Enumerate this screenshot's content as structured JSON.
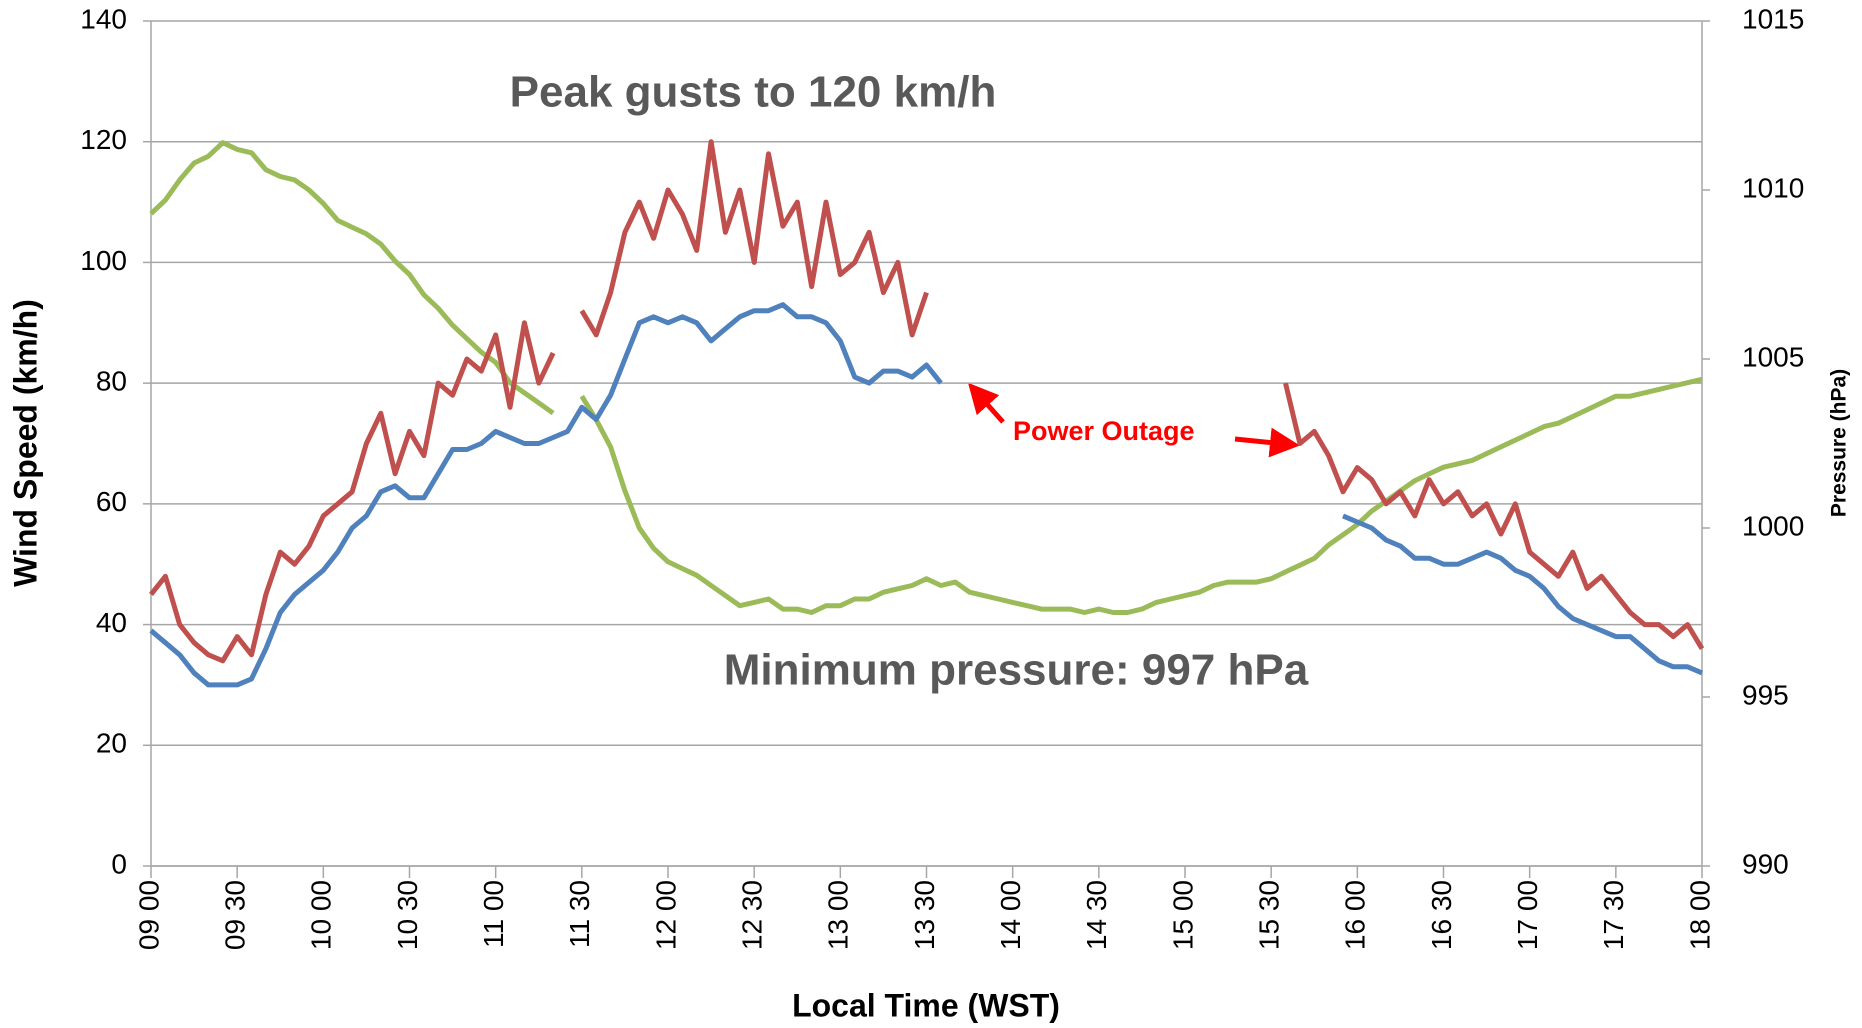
{
  "chart_data": {
    "type": "line",
    "xlabel": "Local Time (WST)",
    "ylabel": "Wind Speed (km/h)",
    "y2label": "Pressure (hPa)",
    "annotations": [
      "Peak gusts to 120 km/h",
      "Minimum pressure: 997 hPa",
      "Power Outage"
    ],
    "x": [
      540,
      545,
      550,
      555,
      560,
      565,
      570,
      575,
      580,
      585,
      590,
      595,
      600,
      605,
      610,
      615,
      620,
      625,
      630,
      635,
      640,
      645,
      650,
      655,
      660,
      665,
      670,
      675,
      680,
      685,
      690,
      695,
      700,
      705,
      710,
      715,
      720,
      725,
      730,
      735,
      740,
      745,
      750,
      755,
      760,
      765,
      770,
      775,
      780,
      785,
      790,
      795,
      800,
      805,
      810,
      815,
      820,
      825,
      830,
      835,
      840,
      845,
      850,
      855,
      860,
      865,
      870,
      875,
      880,
      885,
      890,
      895,
      900,
      905,
      910,
      915,
      920,
      925,
      930,
      935,
      940,
      945,
      950,
      955,
      960,
      965,
      970,
      975,
      980,
      985,
      990,
      995,
      1000,
      1005,
      1010,
      1015,
      1020,
      1025,
      1030,
      1035,
      1040,
      1045,
      1050,
      1055,
      1060,
      1065,
      1070,
      1075,
      1080
    ],
    "xlim": [
      540,
      1080
    ],
    "xticks": [
      {
        "value": 540,
        "label": "09 00"
      },
      {
        "value": 570,
        "label": "09 30"
      },
      {
        "value": 600,
        "label": "10 00"
      },
      {
        "value": 630,
        "label": "10 30"
      },
      {
        "value": 660,
        "label": "11 00"
      },
      {
        "value": 690,
        "label": "11 30"
      },
      {
        "value": 720,
        "label": "12 00"
      },
      {
        "value": 750,
        "label": "12 30"
      },
      {
        "value": 780,
        "label": "13 00"
      },
      {
        "value": 810,
        "label": "13 30"
      },
      {
        "value": 840,
        "label": "14 00"
      },
      {
        "value": 870,
        "label": "14 30"
      },
      {
        "value": 900,
        "label": "15 00"
      },
      {
        "value": 930,
        "label": "15 30"
      },
      {
        "value": 960,
        "label": "16 00"
      },
      {
        "value": 990,
        "label": "16 30"
      },
      {
        "value": 1020,
        "label": "17 00"
      },
      {
        "value": 1050,
        "label": "17 30"
      },
      {
        "value": 1080,
        "label": "18 00"
      }
    ],
    "ylim": [
      0,
      140
    ],
    "yticks": [
      0,
      20,
      40,
      60,
      80,
      100,
      120,
      140
    ],
    "y2lim": [
      990,
      1015
    ],
    "y2ticks": [
      990,
      995,
      1000,
      1005,
      1010,
      1015
    ],
    "grid": true,
    "series": [
      {
        "color": "#4f81bd",
        "values": [
          39,
          37,
          35,
          32,
          30,
          30,
          30,
          31,
          36,
          42,
          45,
          47,
          49,
          52,
          56,
          58,
          62,
          63,
          61,
          61,
          65,
          69,
          69,
          70,
          72,
          71,
          70,
          70,
          71,
          72,
          76,
          74,
          78,
          84,
          90,
          91,
          90,
          91,
          90,
          87,
          89,
          91,
          92,
          92,
          93,
          91,
          91,
          90,
          87,
          81,
          80,
          82,
          82,
          81,
          83,
          80,
          null,
          null,
          null,
          null,
          null,
          null,
          null,
          null,
          null,
          null,
          null,
          null,
          null,
          null,
          null,
          null,
          null,
          null,
          null,
          null,
          null,
          null,
          null,
          null,
          null,
          null,
          null,
          58,
          57,
          56,
          54,
          53,
          51,
          51,
          50,
          50,
          51,
          52,
          51,
          49,
          48,
          46,
          43,
          41,
          40,
          39,
          38,
          38,
          36,
          34,
          33,
          33,
          32
        ]
      },
      {
        "color": "#c0504d",
        "values": [
          45,
          48,
          40,
          37,
          35,
          34,
          38,
          35,
          45,
          52,
          50,
          53,
          58,
          60,
          62,
          70,
          75,
          65,
          72,
          68,
          80,
          78,
          84,
          82,
          88,
          76,
          90,
          80,
          85,
          null,
          92,
          88,
          95,
          105,
          110,
          104,
          112,
          108,
          102,
          120,
          105,
          112,
          100,
          118,
          106,
          110,
          96,
          110,
          98,
          100,
          105,
          95,
          100,
          88,
          95,
          null,
          null,
          null,
          null,
          null,
          null,
          null,
          null,
          null,
          null,
          null,
          null,
          null,
          null,
          null,
          null,
          null,
          null,
          null,
          null,
          null,
          null,
          null,
          null,
          80,
          70,
          72,
          68,
          62,
          66,
          64,
          60,
          62,
          58,
          64,
          60,
          62,
          58,
          60,
          55,
          60,
          52,
          50,
          48,
          52,
          46,
          48,
          45,
          42,
          40,
          40,
          38,
          40,
          36
        ]
      },
      {
        "color": "#9bbb59",
        "axis": "y2",
        "values": [
          1009.3,
          1009.7,
          1010.3,
          1010.8,
          1011.0,
          1011.4,
          1011.2,
          1011.1,
          1010.6,
          1010.4,
          1010.3,
          1010.0,
          1009.6,
          1009.1,
          1008.9,
          1008.7,
          1008.4,
          1007.9,
          1007.5,
          1006.9,
          1006.5,
          1006.0,
          1005.6,
          1005.2,
          1004.9,
          1004.3,
          1004.0,
          1003.7,
          1003.4,
          null,
          1003.9,
          1003.2,
          1002.4,
          1001.1,
          1000.0,
          999.4,
          999.0,
          998.8,
          998.6,
          998.3,
          998.0,
          997.7,
          997.8,
          997.9,
          997.6,
          997.6,
          997.5,
          997.7,
          997.7,
          997.9,
          997.9,
          998.1,
          998.2,
          998.3,
          998.5,
          998.3,
          998.4,
          998.1,
          998.0,
          997.9,
          997.8,
          997.7,
          997.6,
          997.6,
          997.6,
          997.5,
          997.6,
          997.5,
          997.5,
          997.6,
          997.8,
          997.9,
          998.0,
          998.1,
          998.3,
          998.4,
          998.4,
          998.4,
          998.5,
          998.7,
          998.9,
          999.1,
          999.5,
          999.8,
          1000.1,
          1000.5,
          1000.8,
          1001.1,
          1001.4,
          1001.6,
          1001.8,
          1001.9,
          1002.0,
          1002.2,
          1002.4,
          1002.6,
          1002.8,
          1003.0,
          1003.1,
          1003.3,
          1003.5,
          1003.7,
          1003.9,
          1003.9,
          1004.0,
          1004.1,
          1004.2,
          1004.3,
          1004.4
        ]
      }
    ]
  }
}
